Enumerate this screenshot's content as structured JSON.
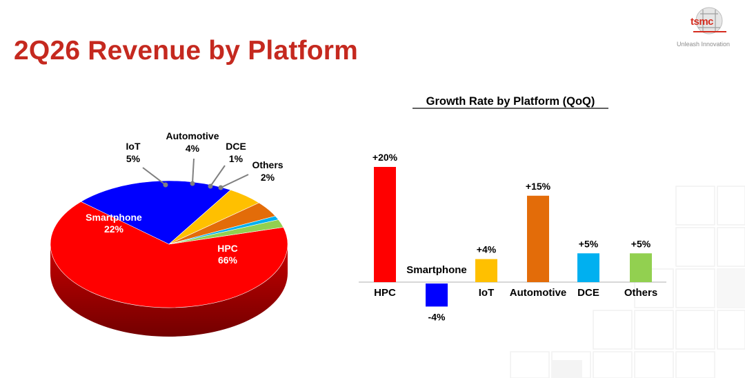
{
  "page": {
    "title": "2Q26 Revenue by Platform",
    "logo_text": "tsmc",
    "logo_tagline": "Unleash Innovation"
  },
  "colors": {
    "title": "#c5291f",
    "HPC": "#ff0000",
    "Smartphone": "#0000ff",
    "IoT": "#ffc000",
    "Automotive": "#e36c09",
    "DCE": "#00b0f0",
    "Others": "#92d050"
  },
  "chart_data": [
    {
      "type": "pie",
      "title": "",
      "slices": [
        {
          "label": "HPC",
          "value": 66,
          "value_label": "66%"
        },
        {
          "label": "Smartphone",
          "value": 22,
          "value_label": "22%"
        },
        {
          "label": "IoT",
          "value": 5,
          "value_label": "5%"
        },
        {
          "label": "Automotive",
          "value": 4,
          "value_label": "4%"
        },
        {
          "label": "DCE",
          "value": 1,
          "value_label": "1%"
        },
        {
          "label": "Others",
          "value": 2,
          "value_label": "2%"
        }
      ]
    },
    {
      "type": "bar",
      "title": "Growth Rate by Platform (QoQ)",
      "categories": [
        "HPC",
        "Smartphone",
        "IoT",
        "Automotive",
        "DCE",
        "Others"
      ],
      "values": [
        20,
        -4,
        4,
        15,
        5,
        5
      ],
      "value_labels": [
        "+20%",
        "-4%",
        "+4%",
        "+15%",
        "+5%",
        "+5%"
      ],
      "xlabel": "",
      "ylabel": "",
      "grid": false
    }
  ]
}
